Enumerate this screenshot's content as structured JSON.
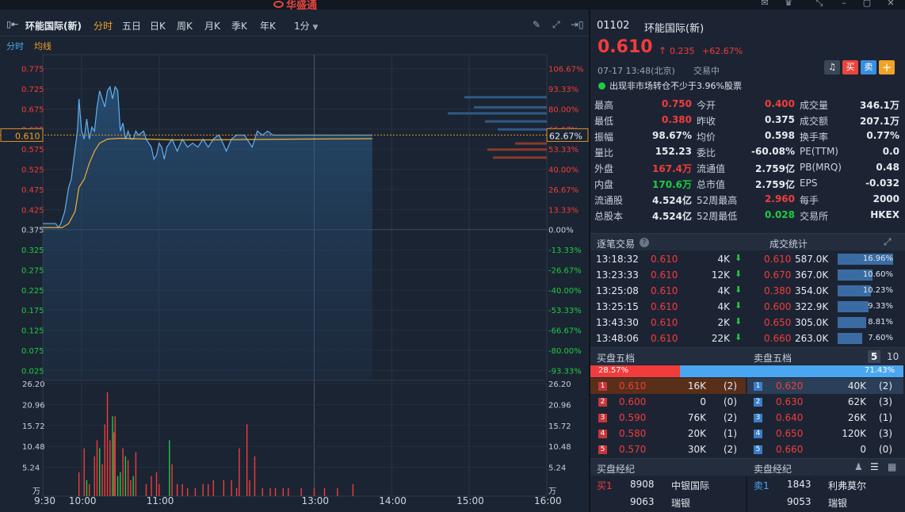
{
  "brand": "华盛通",
  "stock": {
    "code": "01102",
    "name": "环能国际(新)",
    "price": "0.610",
    "change": "0.235",
    "change_pct": "+62.67%",
    "datetime": "07-17  13:48(北京)",
    "status": "交易中",
    "notice": "出现非市场转仓不少于3.96%股票",
    "buy_btn": "买",
    "sell_btn": "卖",
    "add_btn": "+"
  },
  "toolbar": {
    "title": "环能国际(新)",
    "tabs": [
      "分时",
      "五日",
      "日K",
      "周K",
      "月K",
      "季K",
      "年K"
    ],
    "interval": "1分"
  },
  "subtool": {
    "tab1": "分时",
    "tab2": "均线"
  },
  "price_axis_left": [
    "0.775",
    "0.725",
    "0.675",
    "0.625",
    "0.575",
    "0.525",
    "0.475",
    "0.425",
    "0.375",
    "0.325",
    "0.275",
    "0.225",
    "0.175",
    "0.125",
    "0.075",
    "0.025"
  ],
  "price_axis_right": [
    "106.67%",
    "93.33%",
    "80.00%",
    "66.67%",
    "53.33%",
    "40.00%",
    "26.67%",
    "13.33%",
    "0.00%",
    "-13.33%",
    "-26.67%",
    "-40.00%",
    "-53.33%",
    "-66.67%",
    "-80.00%",
    "-93.33%"
  ],
  "current_left_label": "0.610",
  "current_right_label": "62.67%",
  "vol_axis": [
    "26.20",
    "20.96",
    "15.72",
    "10.48",
    "5.24",
    "万"
  ],
  "time_axis": [
    "9:30",
    "10:00",
    "11:00",
    "13:00",
    "14:00",
    "15:00",
    "16:00"
  ],
  "quote": [
    [
      {
        "l": "最高",
        "v": "0.750",
        "c": "red"
      },
      {
        "l": "今开",
        "v": "0.400",
        "c": "red"
      },
      {
        "l": "成交量",
        "v": "346.1万",
        "c": "white"
      }
    ],
    [
      {
        "l": "最低",
        "v": "0.380",
        "c": "red"
      },
      {
        "l": "昨收",
        "v": "0.375",
        "c": "white"
      },
      {
        "l": "成交额",
        "v": "207.1万",
        "c": "white"
      }
    ],
    [
      {
        "l": "振幅",
        "v": "98.67%",
        "c": "white"
      },
      {
        "l": "均价",
        "v": "0.598",
        "c": "white"
      },
      {
        "l": "换手率",
        "v": "0.77%",
        "c": "white"
      }
    ],
    [
      {
        "l": "量比",
        "v": "152.23",
        "c": "white"
      },
      {
        "l": "委比",
        "v": "-60.08%",
        "c": "white"
      },
      {
        "l": "PE(TTM)",
        "v": "0.0",
        "c": "white"
      }
    ],
    [
      {
        "l": "外盘",
        "v": "167.4万",
        "c": "red"
      },
      {
        "l": "流通值",
        "v": "2.759亿",
        "c": "white"
      },
      {
        "l": "PB(MRQ)",
        "v": "0.48",
        "c": "white"
      }
    ],
    [
      {
        "l": "内盘",
        "v": "170.6万",
        "c": "green"
      },
      {
        "l": "总市值",
        "v": "2.759亿",
        "c": "white"
      },
      {
        "l": "EPS",
        "v": "-0.032",
        "c": "white"
      }
    ],
    [
      {
        "l": "流通股",
        "v": "4.524亿",
        "c": "white"
      },
      {
        "l": "52周最高",
        "v": "2.960",
        "c": "red"
      },
      {
        "l": "每手",
        "v": "2000",
        "c": "white"
      }
    ],
    [
      {
        "l": "总股本",
        "v": "4.524亿",
        "c": "white"
      },
      {
        "l": "52周最低",
        "v": "0.028",
        "c": "green"
      },
      {
        "l": "交易所",
        "v": "HKEX",
        "c": "white"
      }
    ]
  ],
  "ticks_head": {
    "left": "逐笔交易",
    "right": "成交统计"
  },
  "ticks": [
    {
      "t": "13:18:32",
      "p": "0.610",
      "v": "4K"
    },
    {
      "t": "13:23:33",
      "p": "0.610",
      "v": "12K"
    },
    {
      "t": "13:25:08",
      "p": "0.610",
      "v": "4K"
    },
    {
      "t": "13:25:15",
      "p": "0.610",
      "v": "4K"
    },
    {
      "t": "13:43:30",
      "p": "0.610",
      "v": "2K"
    },
    {
      "t": "13:48:06",
      "p": "0.610",
      "v": "22K"
    }
  ],
  "stats": [
    {
      "p": "0.610",
      "v": "587.0K",
      "pct": "16.96%",
      "f": 1.0
    },
    {
      "p": "0.670",
      "v": "367.0K",
      "pct": "10.60%",
      "f": 0.625
    },
    {
      "p": "0.380",
      "v": "354.0K",
      "pct": "10.23%",
      "f": 0.603
    },
    {
      "p": "0.600",
      "v": "322.9K",
      "pct": "9.33%",
      "f": 0.55
    },
    {
      "p": "0.650",
      "v": "305.0K",
      "pct": "8.81%",
      "f": 0.52
    },
    {
      "p": "0.660",
      "v": "263.0K",
      "pct": "7.60%",
      "f": 0.448
    }
  ],
  "book_head": {
    "bid": "买盘五档",
    "ask": "卖盘五档",
    "opt1": "5",
    "opt2": "10"
  },
  "ratio": {
    "bid": "28.57%",
    "ask": "71.43%",
    "bid_frac": 0.2857
  },
  "bids": [
    {
      "n": "1",
      "p": "0.610",
      "v": "16K",
      "c": "(2)"
    },
    {
      "n": "2",
      "p": "0.600",
      "v": "0",
      "c": "(0)"
    },
    {
      "n": "3",
      "p": "0.590",
      "v": "76K",
      "c": "(2)"
    },
    {
      "n": "4",
      "p": "0.580",
      "v": "20K",
      "c": "(1)"
    },
    {
      "n": "5",
      "p": "0.570",
      "v": "30K",
      "c": "(2)"
    }
  ],
  "asks": [
    {
      "n": "1",
      "p": "0.620",
      "v": "40K",
      "c": "(2)"
    },
    {
      "n": "2",
      "p": "0.630",
      "v": "62K",
      "c": "(3)"
    },
    {
      "n": "3",
      "p": "0.640",
      "v": "26K",
      "c": "(1)"
    },
    {
      "n": "4",
      "p": "0.650",
      "v": "120K",
      "c": "(3)"
    },
    {
      "n": "5",
      "p": "0.660",
      "v": "0",
      "c": "(0)"
    }
  ],
  "brokers_head": {
    "bid": "买盘经纪",
    "ask": "卖盘经纪"
  },
  "brokers": {
    "bid": [
      {
        "tag": "买1",
        "id": "8908",
        "name": "中银国际"
      },
      {
        "tag": "",
        "id": "9063",
        "name": "瑞银"
      }
    ],
    "ask": [
      {
        "tag": "卖1",
        "id": "1843",
        "name": "利弗莫尔"
      },
      {
        "tag": "",
        "id": "9053",
        "name": "瑞银"
      }
    ]
  },
  "chart_data": {
    "type": "line",
    "prev_close": 0.375,
    "ylim": [
      0.0,
      0.8
    ],
    "price": [
      [
        0,
        0.39
      ],
      [
        5,
        0.39
      ],
      [
        10,
        0.39
      ],
      [
        12,
        0.38
      ],
      [
        14,
        0.39
      ],
      [
        17,
        0.42
      ],
      [
        20,
        0.48
      ],
      [
        22,
        0.5
      ],
      [
        24,
        0.55
      ],
      [
        26,
        0.6
      ],
      [
        27,
        0.63
      ],
      [
        28,
        0.7
      ],
      [
        30,
        0.62
      ],
      [
        32,
        0.6
      ],
      [
        34,
        0.65
      ],
      [
        36,
        0.6
      ],
      [
        38,
        0.63
      ],
      [
        40,
        0.62
      ],
      [
        42,
        0.68
      ],
      [
        44,
        0.72
      ],
      [
        46,
        0.7
      ],
      [
        48,
        0.68
      ],
      [
        50,
        0.72
      ],
      [
        52,
        0.73
      ],
      [
        54,
        0.7
      ],
      [
        56,
        0.73
      ],
      [
        58,
        0.72
      ],
      [
        60,
        0.62
      ],
      [
        62,
        0.64
      ],
      [
        64,
        0.6
      ],
      [
        66,
        0.62
      ],
      [
        68,
        0.6
      ],
      [
        70,
        0.6
      ],
      [
        72,
        0.62
      ],
      [
        74,
        0.61
      ],
      [
        78,
        0.62
      ],
      [
        80,
        0.6
      ],
      [
        84,
        0.58
      ],
      [
        86,
        0.55
      ],
      [
        88,
        0.56
      ],
      [
        90,
        0.59
      ],
      [
        92,
        0.58
      ],
      [
        94,
        0.55
      ],
      [
        96,
        0.58
      ],
      [
        100,
        0.6
      ],
      [
        104,
        0.57
      ],
      [
        108,
        0.6
      ],
      [
        112,
        0.58
      ],
      [
        116,
        0.59
      ],
      [
        120,
        0.58
      ],
      [
        124,
        0.6
      ],
      [
        128,
        0.58
      ],
      [
        132,
        0.6
      ],
      [
        136,
        0.61
      ],
      [
        138,
        0.6
      ],
      [
        142,
        0.57
      ],
      [
        146,
        0.6
      ],
      [
        150,
        0.61
      ],
      [
        156,
        0.61
      ],
      [
        158,
        0.6
      ],
      [
        162,
        0.58
      ],
      [
        166,
        0.62
      ],
      [
        170,
        0.61
      ],
      [
        174,
        0.62
      ],
      [
        178,
        0.61
      ],
      [
        182,
        0.61
      ],
      [
        186,
        0.61
      ],
      [
        190,
        0.61
      ],
      [
        196,
        0.61
      ],
      [
        200,
        0.61
      ],
      [
        210,
        0.61
      ],
      [
        220,
        0.61
      ],
      [
        240,
        0.61
      ],
      [
        255,
        0.61
      ]
    ],
    "avg": [
      [
        0,
        0.38
      ],
      [
        15,
        0.38
      ],
      [
        20,
        0.39
      ],
      [
        25,
        0.42
      ],
      [
        28,
        0.48
      ],
      [
        32,
        0.5
      ],
      [
        36,
        0.54
      ],
      [
        40,
        0.57
      ],
      [
        44,
        0.59
      ],
      [
        50,
        0.6
      ],
      [
        60,
        0.602
      ],
      [
        80,
        0.6
      ],
      [
        100,
        0.598
      ],
      [
        130,
        0.598
      ],
      [
        160,
        0.599
      ],
      [
        200,
        0.6
      ],
      [
        255,
        0.601
      ]
    ],
    "volume": [
      [
        28,
        6
      ],
      [
        32,
        12
      ],
      [
        34,
        4
      ],
      [
        36,
        3
      ],
      [
        40,
        10
      ],
      [
        42,
        14
      ],
      [
        44,
        12
      ],
      [
        46,
        8
      ],
      [
        48,
        18
      ],
      [
        50,
        26
      ],
      [
        52,
        14
      ],
      [
        54,
        20
      ],
      [
        55,
        16
      ],
      [
        56,
        20
      ],
      [
        58,
        5
      ],
      [
        60,
        6
      ],
      [
        62,
        12
      ],
      [
        64,
        10
      ],
      [
        66,
        9
      ],
      [
        68,
        4
      ],
      [
        70,
        5
      ],
      [
        72,
        11
      ],
      [
        80,
        3
      ],
      [
        84,
        5
      ],
      [
        88,
        6
      ],
      [
        90,
        3
      ],
      [
        98,
        14
      ],
      [
        100,
        8
      ],
      [
        104,
        3
      ],
      [
        108,
        3
      ],
      [
        112,
        2
      ],
      [
        118,
        2
      ],
      [
        124,
        3
      ],
      [
        128,
        3
      ],
      [
        132,
        4
      ],
      [
        140,
        4
      ],
      [
        146,
        4
      ],
      [
        150,
        2
      ],
      [
        152,
        12
      ],
      [
        158,
        18
      ],
      [
        160,
        4
      ],
      [
        164,
        10
      ],
      [
        170,
        2
      ],
      [
        176,
        2
      ],
      [
        180,
        2
      ],
      [
        186,
        2
      ],
      [
        190,
        2
      ],
      [
        200,
        2
      ],
      [
        210,
        2
      ],
      [
        218,
        2
      ],
      [
        228,
        2
      ],
      [
        240,
        3
      ]
    ],
    "vol_colors": [
      "red",
      "red",
      "green",
      "red",
      "red",
      "red",
      "green",
      "red",
      "red",
      "red",
      "red",
      "green",
      "red",
      "red",
      "green",
      "green",
      "red",
      "green",
      "red",
      "red",
      "green",
      "red",
      "red",
      "red",
      "red",
      "red",
      "green",
      "red",
      "red",
      "red",
      "red",
      "red",
      "red",
      "red",
      "red",
      "red",
      "red",
      "red",
      "red",
      "red",
      "red",
      "red",
      "red",
      "red",
      "red",
      "red",
      "red",
      "red",
      "red",
      "red",
      "red",
      "red",
      "red"
    ],
    "vol_ylim": [
      0,
      26.2
    ]
  }
}
